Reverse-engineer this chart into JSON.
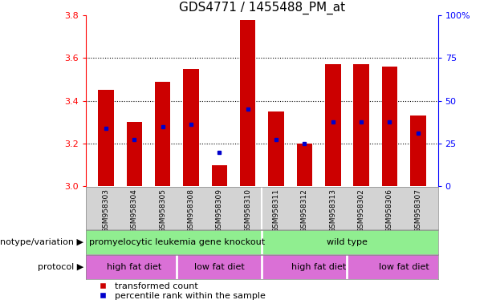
{
  "title": "GDS4771 / 1455488_PM_at",
  "samples": [
    "GSM958303",
    "GSM958304",
    "GSM958305",
    "GSM958308",
    "GSM958309",
    "GSM958310",
    "GSM958311",
    "GSM958312",
    "GSM958313",
    "GSM958302",
    "GSM958306",
    "GSM958307"
  ],
  "bar_tops": [
    3.45,
    3.3,
    3.49,
    3.55,
    3.1,
    3.78,
    3.35,
    3.2,
    3.57,
    3.57,
    3.56,
    3.33
  ],
  "bar_base": 3.0,
  "percentile_values": [
    3.27,
    3.22,
    3.28,
    3.29,
    3.16,
    3.36,
    3.22,
    3.2,
    3.3,
    3.3,
    3.3,
    3.25
  ],
  "ylim": [
    3.0,
    3.8
  ],
  "yticks_left": [
    3.0,
    3.2,
    3.4,
    3.6,
    3.8
  ],
  "yticks_right": [
    0,
    25,
    50,
    75,
    100
  ],
  "bar_color": "#cc0000",
  "percentile_color": "#0000cc",
  "genotype_groups": [
    {
      "label": "promyelocytic leukemia gene knockout",
      "start": 0,
      "end": 6,
      "color": "#90ee90"
    },
    {
      "label": "wild type",
      "start": 6,
      "end": 12,
      "color": "#90ee90"
    }
  ],
  "protocol_groups": [
    {
      "label": "high fat diet",
      "start": 0,
      "end": 3,
      "color": "#da70d6"
    },
    {
      "label": "low fat diet",
      "start": 3,
      "end": 6,
      "color": "#da70d6"
    },
    {
      "label": "high fat diet",
      "start": 6,
      "end": 9,
      "color": "#da70d6"
    },
    {
      "label": "low fat diet",
      "start": 9,
      "end": 12,
      "color": "#da70d6"
    }
  ],
  "genotype_label": "genotype/variation",
  "protocol_label": "protocol",
  "legend_items": [
    {
      "label": "transformed count",
      "color": "#cc0000"
    },
    {
      "label": "percentile rank within the sample",
      "color": "#0000cc"
    }
  ],
  "geno_separator": 5.5,
  "proto_separators": [
    2.5,
    5.5,
    8.5
  ],
  "sample_separator": 5.5,
  "title_fontsize": 11,
  "tick_fontsize": 8,
  "sample_fontsize": 6.5,
  "row_fontsize": 8,
  "legend_fontsize": 8
}
